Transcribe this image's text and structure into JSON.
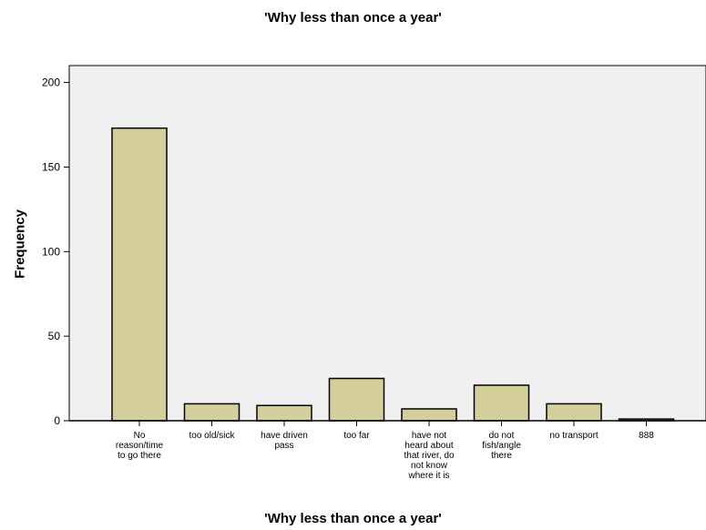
{
  "chart_data": {
    "type": "bar",
    "title": "'Why less than once a year'",
    "xlabel": "'Why less than once a year'",
    "ylabel": "Frequency",
    "ylim": [
      0,
      210
    ],
    "yticks": [
      0,
      50,
      100,
      150,
      200
    ],
    "categories": [
      [
        "No",
        "reason/time",
        "to go there"
      ],
      [
        "too old/sick"
      ],
      [
        "have driven",
        "pass"
      ],
      [
        "too far"
      ],
      [
        "have not",
        "heard about",
        "that river, do",
        "not know",
        "where it is"
      ],
      [
        "do not",
        "fish/angle",
        "there"
      ],
      [
        "no transport"
      ],
      [
        "888"
      ]
    ],
    "values": [
      173,
      10,
      9,
      25,
      7,
      21,
      10,
      1
    ],
    "colors": {
      "bar_fill": "#d4cf9a",
      "bar_stroke": "#000000",
      "plot_background": "#f0f0f0"
    },
    "grid": false,
    "legend": "none"
  }
}
